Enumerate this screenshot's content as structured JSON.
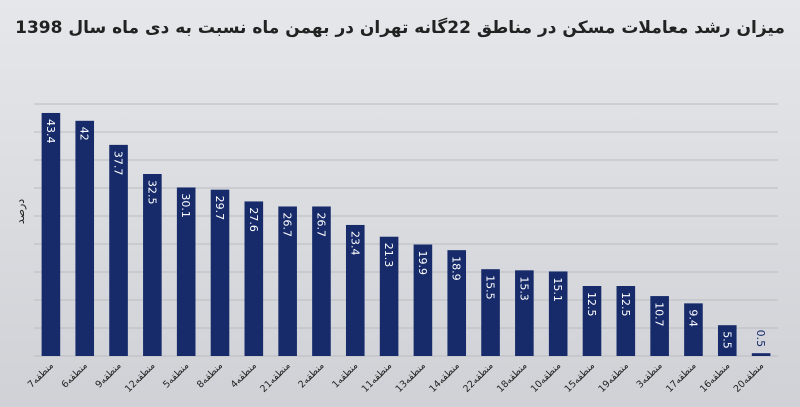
{
  "chart_data": {
    "type": "bar",
    "title": "میزان رشد معاملات مسکن در مناطق 22گانه تهران در بهمن ماه نسبت به دی ماه سال 1398",
    "ylabel": "درصد",
    "xlabel": "",
    "ylim": [
      0,
      45
    ],
    "grid": true,
    "categories": [
      "منطقه7",
      "منطقه6",
      "منطقه9",
      "منطقه12",
      "منطقه5",
      "منطقه8",
      "منطقه4",
      "منطقه21",
      "منطقه2",
      "منطقه1",
      "منطقه11",
      "منطقه13",
      "منطقه14",
      "منطقه22",
      "منطقه18",
      "منطقه10",
      "منطقه15",
      "منطقه19",
      "منطقه3",
      "منطقه17",
      "منطقه16",
      "منطقه20"
    ],
    "values": [
      43.4,
      42,
      37.7,
      32.5,
      30.1,
      29.7,
      27.6,
      26.7,
      26.7,
      23.4,
      21.3,
      19.9,
      18.9,
      15.5,
      15.3,
      15.1,
      12.5,
      12.5,
      10.7,
      9.4,
      5.5,
      0.5
    ],
    "colors": {
      "bar": "#172b6b",
      "grid": "#b9bcc3",
      "label_inside": "#ffffff",
      "label_outside": "#172b6b"
    }
  }
}
